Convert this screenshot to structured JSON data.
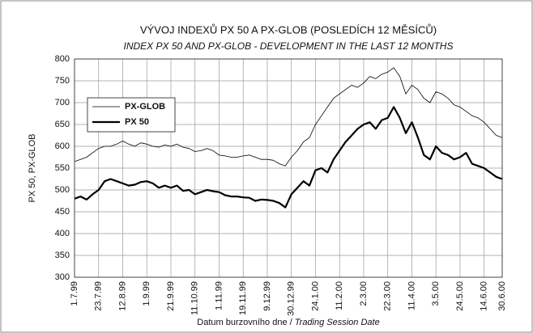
{
  "chart_data": {
    "type": "line",
    "title": "VÝVOJ INDEXŮ PX 50  A PX-GLOB (POSLEDÍCH 12 MĚSÍCŮ)",
    "subtitle": "INDEX PX 50 AND PX-GLOB - DEVELOPMENT IN THE LAST 12 MONTHS",
    "ylabel": "PX 50, PX-GLOB",
    "xlabel": "Datum burzovního dne /",
    "xlabel_en": "Trading Session Date",
    "categories": [
      "1.7.99",
      null,
      null,
      null,
      "23.7.99",
      null,
      null,
      null,
      "12.8.99",
      null,
      null,
      null,
      "1.9.99",
      null,
      null,
      null,
      "21.9.99",
      null,
      null,
      null,
      "11.10.99",
      null,
      null,
      null,
      "1.11.99",
      null,
      null,
      null,
      "19.11.99",
      null,
      null,
      null,
      "9.12.99",
      null,
      null,
      null,
      "30.12.99",
      null,
      null,
      null,
      "24.1.00",
      null,
      null,
      null,
      "11.2.00",
      null,
      null,
      null,
      "2.3.00",
      null,
      null,
      null,
      "22.3.00",
      null,
      null,
      null,
      "11.4.00",
      null,
      null,
      null,
      "3.5.00",
      null,
      null,
      null,
      "24.5.00",
      null,
      null,
      null,
      "14.6.00",
      null,
      null,
      "30.6.00"
    ],
    "series": [
      {
        "name": "PX-GLOB",
        "color": "#000000",
        "width": 0.8,
        "values": [
          565,
          570,
          575,
          585,
          595,
          600,
          600,
          605,
          612,
          605,
          600,
          608,
          605,
          600,
          598,
          603,
          600,
          605,
          598,
          595,
          588,
          590,
          595,
          590,
          580,
          578,
          575,
          575,
          578,
          580,
          575,
          570,
          570,
          568,
          560,
          555,
          575,
          590,
          610,
          620,
          650,
          670,
          690,
          710,
          720,
          730,
          740,
          735,
          745,
          760,
          755,
          765,
          770,
          780,
          760,
          720,
          740,
          730,
          710,
          700,
          725,
          720,
          710,
          695,
          690,
          680,
          670,
          665,
          655,
          640,
          625,
          620
        ]
      },
      {
        "name": "PX 50",
        "color": "#000000",
        "width": 2.2,
        "values": [
          480,
          485,
          478,
          490,
          500,
          520,
          525,
          520,
          515,
          510,
          512,
          518,
          520,
          515,
          505,
          510,
          505,
          510,
          498,
          500,
          490,
          495,
          500,
          497,
          495,
          488,
          485,
          485,
          483,
          482,
          475,
          478,
          477,
          475,
          470,
          460,
          490,
          505,
          520,
          510,
          545,
          550,
          540,
          570,
          590,
          610,
          625,
          640,
          650,
          655,
          640,
          660,
          665,
          690,
          665,
          630,
          655,
          620,
          580,
          570,
          600,
          585,
          580,
          570,
          575,
          585,
          560,
          555,
          550,
          540,
          530,
          525
        ]
      }
    ],
    "ylim": [
      300,
      800
    ],
    "yticks": [
      300,
      350,
      400,
      450,
      500,
      550,
      600,
      650,
      700,
      750,
      800
    ],
    "grid": true,
    "legend": "upper left"
  }
}
